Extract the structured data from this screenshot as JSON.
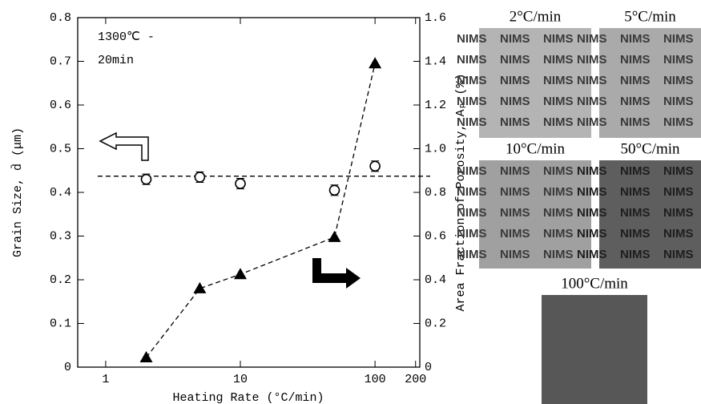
{
  "chart_data": {
    "type": "dual-axis-scatter",
    "annotation": [
      "1300℃ -",
      "20min"
    ],
    "x_label": "Heating Rate (°C/min)",
    "y_label": "Grain Size, d̄ (μm)",
    "y2_label": "Area Fraction of Porosity, Aₚ (%)",
    "x": [
      2,
      5,
      10,
      50,
      100
    ],
    "xlim": [
      0.62,
      215
    ],
    "xscale": "log",
    "xticks": [
      1,
      10,
      100,
      200
    ],
    "ylim": [
      0,
      0.8
    ],
    "yticks": [
      0,
      0.1,
      0.2,
      0.3,
      0.4,
      0.5,
      0.6,
      0.7,
      0.8
    ],
    "y2lim": [
      0,
      1.6
    ],
    "y2ticks": [
      0,
      0.2,
      0.4,
      0.6,
      0.8,
      {
        "value": 1,
        "label": "1.0"
      },
      1.2,
      1.4,
      1.6
    ],
    "hline": 0.437,
    "series": [
      {
        "marker": "circle",
        "color": "#000000",
        "values": [
          0.43,
          0.435,
          0.42,
          0.405,
          0.46
        ],
        "errors": [
          0.012,
          0.012,
          0.012,
          0.012,
          0.012
        ]
      },
      {
        "marker": "triangle",
        "color": "#000000",
        "axis": "y2",
        "values": [
          0.044,
          0.36,
          0.425,
          0.595,
          1.39
        ]
      }
    ]
  },
  "images": {
    "watermark": "NIMS",
    "panels": [
      {
        "label": "2°C/min",
        "shade": "#b4b4b4"
      },
      {
        "label": "5°C/min",
        "shade": "#aaaaaa"
      },
      {
        "label": "10°C/min",
        "shade": "#a0a0a0"
      },
      {
        "label": "50°C/min",
        "shade": "#5e5e5e"
      },
      {
        "label": "100°C/min",
        "shade": "#575757"
      }
    ]
  }
}
